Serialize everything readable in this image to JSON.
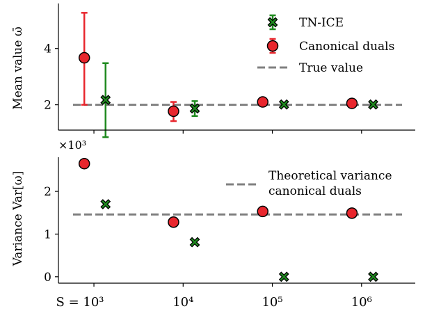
{
  "colors": {
    "tn_ice_fill": "#1f8a1f",
    "tn_ice_bar": "#1f8a1f",
    "dual_fill": "#e8262d",
    "dual_bar": "#e8262d",
    "reference": "#808080",
    "axis": "#000000"
  },
  "chart_data": [
    {
      "type": "scatter",
      "ylabel": "Mean value ω̄",
      "x_scale": "log",
      "ylim": [
        1.1,
        5.6
      ],
      "yticks": [
        "2",
        "4"
      ],
      "ytick_values": [
        2,
        4
      ],
      "x_ticks_marked": [
        1000,
        10000,
        100000,
        1000000
      ],
      "legend_placement": "top-right",
      "reference": {
        "name": "True value",
        "y": 2.0,
        "style": "dashed"
      },
      "series": [
        {
          "name": "TN-ICE",
          "marker": "x-filled",
          "points": [
            {
              "x": 1350,
              "y": 2.17,
              "err_low": 0.85,
              "err_high": 3.48
            },
            {
              "x": 13500,
              "y": 1.87,
              "err_low": 1.6,
              "err_high": 2.13
            },
            {
              "x": 135000,
              "y": 2.01,
              "err_low": 1.98,
              "err_high": 2.04
            },
            {
              "x": 1350000,
              "y": 2.01,
              "err_low": 1.99,
              "err_high": 2.03
            }
          ]
        },
        {
          "name": "Canonical duals",
          "marker": "circle",
          "points": [
            {
              "x": 780,
              "y": 3.67,
              "err_low": 2.0,
              "err_high": 5.27
            },
            {
              "x": 7800,
              "y": 1.77,
              "err_low": 1.42,
              "err_high": 2.1
            },
            {
              "x": 78000,
              "y": 2.1,
              "err_low": 2.05,
              "err_high": 2.15
            },
            {
              "x": 780000,
              "y": 2.05,
              "err_low": 2.02,
              "err_high": 2.08
            }
          ]
        }
      ]
    },
    {
      "type": "scatter",
      "ylabel": "Variance Var[ω]",
      "y_multiplier": "×10³",
      "x_scale": "log",
      "ylim": [
        -0.15,
        2.8
      ],
      "yticks": [
        "0",
        "1",
        "2"
      ],
      "ytick_values": [
        0,
        1,
        2
      ],
      "xticks": [
        "S = 10³",
        "10⁴",
        "10⁵",
        "10⁶"
      ],
      "xtick_values": [
        1000,
        10000,
        100000,
        1000000
      ],
      "legend_placement": "top-right",
      "reference": {
        "name": "Theoretical variance canonical duals",
        "name_lines": [
          "Theoretical variance",
          "canonical duals"
        ],
        "y": 1.46,
        "style": "dashed"
      },
      "series": [
        {
          "name": "TN-ICE",
          "marker": "x-filled",
          "points": [
            {
              "x": 1350,
              "y": 1.7
            },
            {
              "x": 13500,
              "y": 0.81
            },
            {
              "x": 135000,
              "y": 0.0
            },
            {
              "x": 1350000,
              "y": 0.0
            }
          ]
        },
        {
          "name": "Canonical duals",
          "marker": "circle",
          "points": [
            {
              "x": 780,
              "y": 2.65
            },
            {
              "x": 7800,
              "y": 1.28
            },
            {
              "x": 78000,
              "y": 1.53
            },
            {
              "x": 780000,
              "y": 1.49
            }
          ]
        }
      ]
    }
  ]
}
